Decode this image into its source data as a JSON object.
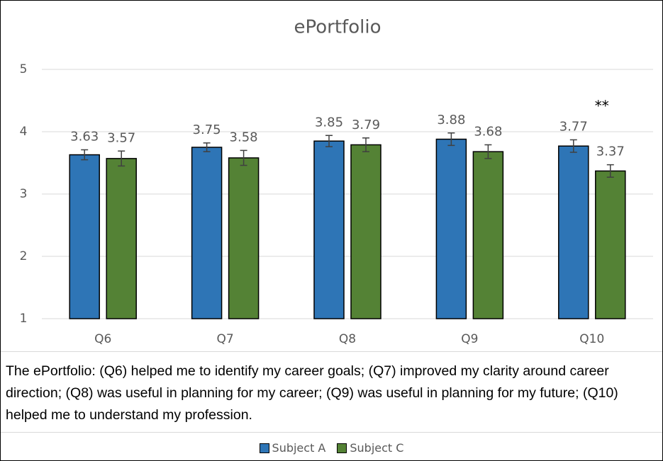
{
  "chart_data": {
    "type": "bar",
    "title": "ePortfolio",
    "categories": [
      "Q6",
      "Q7",
      "Q8",
      "Q9",
      "Q10"
    ],
    "series": [
      {
        "name": "Subject A",
        "color": "#2e75b6",
        "values": [
          3.63,
          3.75,
          3.85,
          3.88,
          3.77
        ],
        "errors": [
          0.08,
          0.07,
          0.09,
          0.1,
          0.1
        ]
      },
      {
        "name": "Subject C",
        "color": "#548235",
        "values": [
          3.57,
          3.58,
          3.79,
          3.68,
          3.37
        ],
        "errors": [
          0.12,
          0.12,
          0.11,
          0.11,
          0.1
        ]
      }
    ],
    "ylim": [
      1,
      5
    ],
    "yticks": [
      1,
      2,
      3,
      4,
      5
    ],
    "grid": true,
    "annotations": [
      "**"
    ],
    "caption": "The ePortfolio: (Q6) helped me to identify my career goals; (Q7) improved my clarity around career direction; (Q8) was useful in planning for my career; (Q9) was useful in planning for my future; (Q10) helped me to understand my profession.",
    "legend": "bottom"
  }
}
